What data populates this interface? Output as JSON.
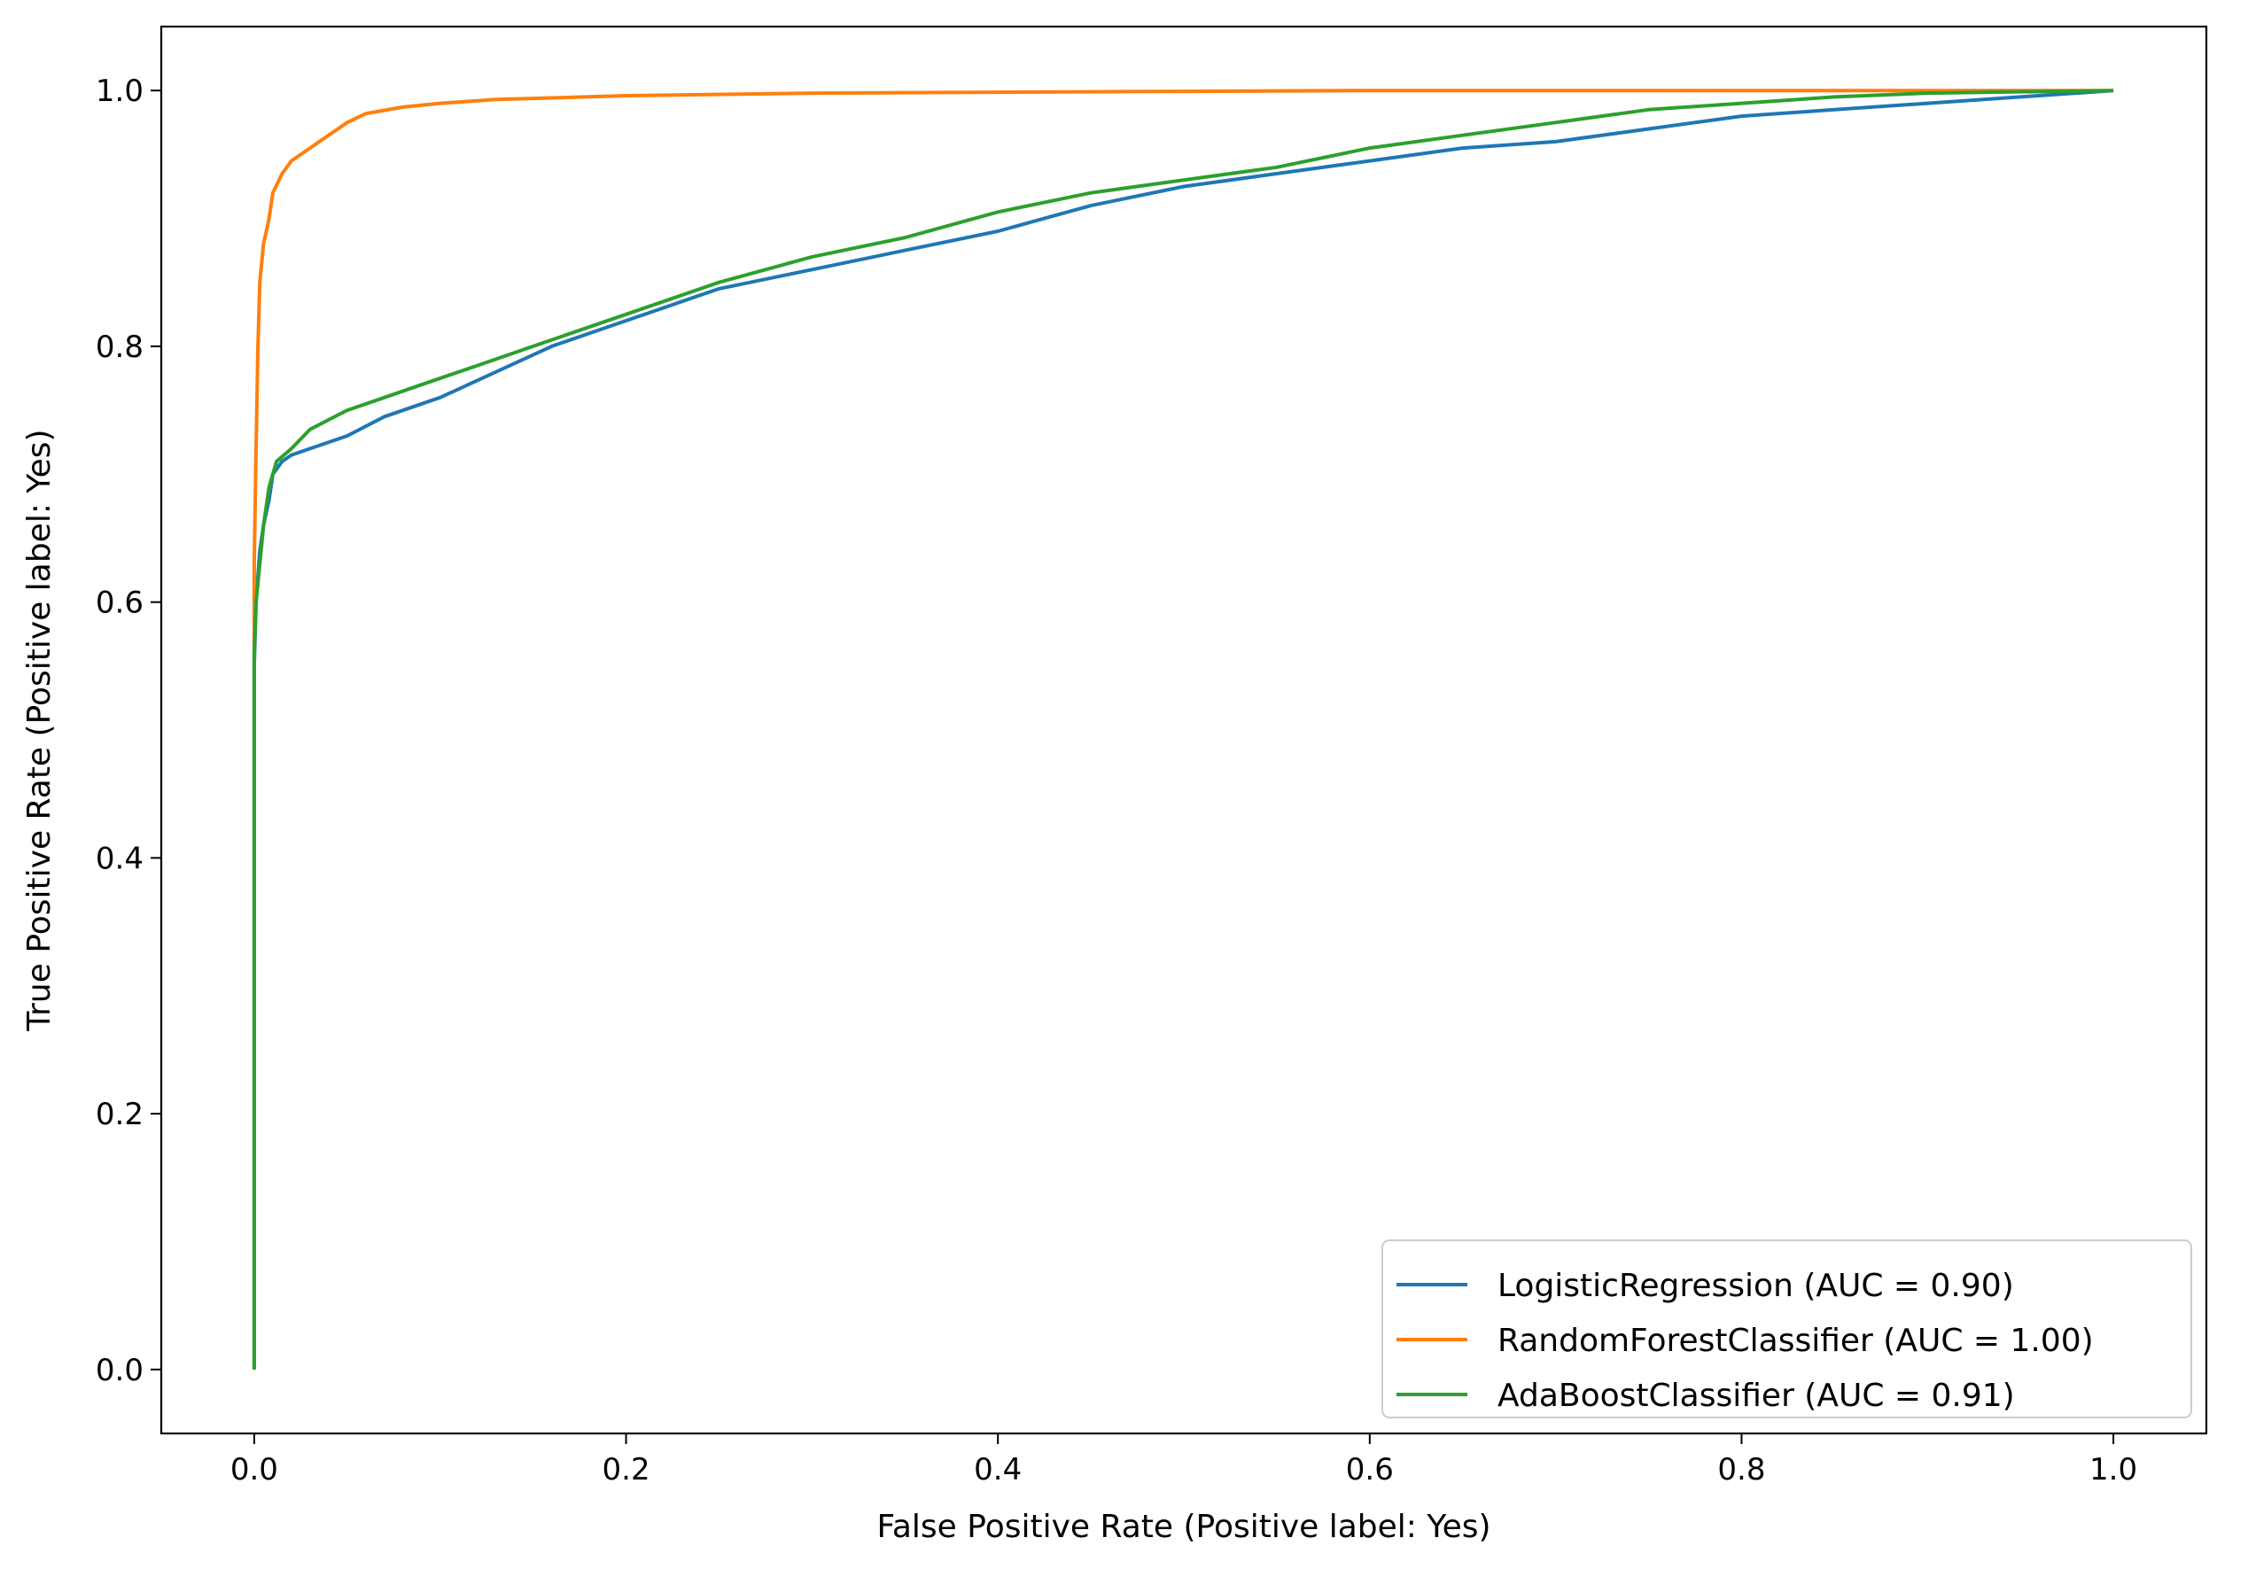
{
  "chart_data": {
    "type": "line",
    "title": "",
    "xlabel": "False Positive Rate (Positive label: Yes)",
    "ylabel": "True Positive Rate (Positive label: Yes)",
    "xlim": [
      -0.05,
      1.05
    ],
    "ylim": [
      -0.05,
      1.05
    ],
    "xticks": [
      0.0,
      0.2,
      0.4,
      0.6,
      0.8,
      1.0
    ],
    "yticks": [
      0.0,
      0.2,
      0.4,
      0.6,
      0.8,
      1.0
    ],
    "xtick_labels": [
      "0.0",
      "0.2",
      "0.4",
      "0.6",
      "0.8",
      "1.0"
    ],
    "ytick_labels": [
      "0.0",
      "0.2",
      "0.4",
      "0.6",
      "0.8",
      "1.0"
    ],
    "grid": false,
    "legend_position": "bottom-right",
    "series": [
      {
        "name": "LogisticRegression (AUC = 0.90)",
        "color": "#1f77b4",
        "points": [
          [
            0,
            0
          ],
          [
            0,
            0.55
          ],
          [
            0.001,
            0.6
          ],
          [
            0.003,
            0.64
          ],
          [
            0.005,
            0.66
          ],
          [
            0.008,
            0.68
          ],
          [
            0.01,
            0.7
          ],
          [
            0.015,
            0.71
          ],
          [
            0.02,
            0.715
          ],
          [
            0.03,
            0.72
          ],
          [
            0.05,
            0.73
          ],
          [
            0.07,
            0.745
          ],
          [
            0.1,
            0.76
          ],
          [
            0.13,
            0.78
          ],
          [
            0.16,
            0.8
          ],
          [
            0.2,
            0.82
          ],
          [
            0.25,
            0.845
          ],
          [
            0.3,
            0.86
          ],
          [
            0.35,
            0.875
          ],
          [
            0.4,
            0.89
          ],
          [
            0.45,
            0.91
          ],
          [
            0.5,
            0.925
          ],
          [
            0.55,
            0.935
          ],
          [
            0.6,
            0.945
          ],
          [
            0.65,
            0.955
          ],
          [
            0.7,
            0.96
          ],
          [
            0.75,
            0.97
          ],
          [
            0.8,
            0.98
          ],
          [
            0.85,
            0.985
          ],
          [
            0.9,
            0.99
          ],
          [
            0.95,
            0.995
          ],
          [
            1.0,
            1.0
          ]
        ]
      },
      {
        "name": "RandomForestClassifier (AUC = 1.00)",
        "color": "#ff7f0e",
        "points": [
          [
            0,
            0
          ],
          [
            0,
            0.63
          ],
          [
            0.001,
            0.72
          ],
          [
            0.002,
            0.8
          ],
          [
            0.003,
            0.85
          ],
          [
            0.005,
            0.88
          ],
          [
            0.008,
            0.9
          ],
          [
            0.01,
            0.92
          ],
          [
            0.015,
            0.935
          ],
          [
            0.02,
            0.945
          ],
          [
            0.03,
            0.955
          ],
          [
            0.04,
            0.965
          ],
          [
            0.05,
            0.975
          ],
          [
            0.06,
            0.982
          ],
          [
            0.08,
            0.987
          ],
          [
            0.1,
            0.99
          ],
          [
            0.13,
            0.993
          ],
          [
            0.2,
            0.996
          ],
          [
            0.3,
            0.998
          ],
          [
            0.45,
            0.999
          ],
          [
            0.6,
            1.0
          ],
          [
            1.0,
            1.0
          ]
        ]
      },
      {
        "name": "AdaBoostClassifier (AUC = 0.91)",
        "color": "#2ca02c",
        "points": [
          [
            0,
            0
          ],
          [
            0,
            0.56
          ],
          [
            0.001,
            0.6
          ],
          [
            0.003,
            0.63
          ],
          [
            0.005,
            0.66
          ],
          [
            0.008,
            0.69
          ],
          [
            0.012,
            0.71
          ],
          [
            0.02,
            0.72
          ],
          [
            0.03,
            0.735
          ],
          [
            0.05,
            0.75
          ],
          [
            0.07,
            0.76
          ],
          [
            0.09,
            0.77
          ],
          [
            0.12,
            0.785
          ],
          [
            0.15,
            0.8
          ],
          [
            0.2,
            0.825
          ],
          [
            0.25,
            0.85
          ],
          [
            0.3,
            0.87
          ],
          [
            0.35,
            0.885
          ],
          [
            0.4,
            0.905
          ],
          [
            0.45,
            0.92
          ],
          [
            0.5,
            0.93
          ],
          [
            0.55,
            0.94
          ],
          [
            0.6,
            0.955
          ],
          [
            0.65,
            0.965
          ],
          [
            0.7,
            0.975
          ],
          [
            0.75,
            0.985
          ],
          [
            0.8,
            0.99
          ],
          [
            0.85,
            0.995
          ],
          [
            0.9,
            0.998
          ],
          [
            1.0,
            1.0
          ]
        ]
      }
    ]
  }
}
